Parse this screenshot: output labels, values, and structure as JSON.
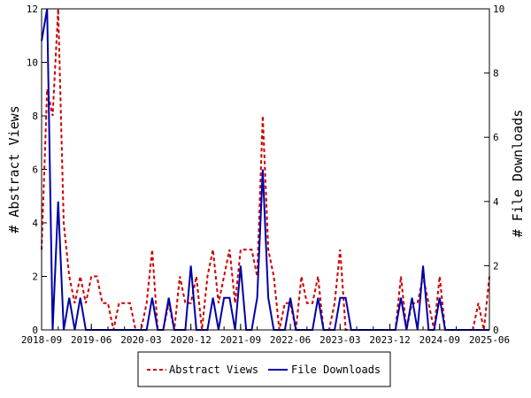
{
  "chart_data": {
    "type": "line",
    "title": "",
    "xlabel": "",
    "ylabel_left": "# Abstract Views",
    "ylabel_right": "# File Downloads",
    "ylim_left": [
      0,
      12
    ],
    "ylim_right": [
      0,
      10
    ],
    "yticks_left": [
      "0",
      "2",
      "4",
      "6",
      "8",
      "10",
      "12"
    ],
    "yticks_right": [
      "0",
      "2",
      "4",
      "6",
      "8",
      "10"
    ],
    "xlim": [
      "2018-09",
      "2025-06"
    ],
    "xtick_labels": [
      "2018-09",
      "2019-06",
      "2020-03",
      "2020-12",
      "2021-09",
      "2022-06",
      "2023-03",
      "2023-12",
      "2024-09",
      "2025-06"
    ],
    "grid": false,
    "legend_position": "bottom-center",
    "colors": {
      "abstract_views": "#cc0000",
      "file_downloads": "#0000aa"
    },
    "series": [
      {
        "name": "Abstract Views",
        "axis": "left",
        "style": "dashed",
        "points": [
          [
            "2018-09-01",
            3
          ],
          [
            "2018-10-01",
            9
          ],
          [
            "2018-11-01",
            8
          ],
          [
            "2018-12-01",
            12
          ],
          [
            "2019-01-01",
            4
          ],
          [
            "2019-02-01",
            2
          ],
          [
            "2019-03-01",
            1
          ],
          [
            "2019-04-01",
            2
          ],
          [
            "2019-05-01",
            1
          ],
          [
            "2019-06-01",
            2
          ],
          [
            "2019-07-01",
            2
          ],
          [
            "2019-08-01",
            1
          ],
          [
            "2019-09-01",
            1
          ],
          [
            "2019-10-01",
            0
          ],
          [
            "2019-11-01",
            1
          ],
          [
            "2019-12-01",
            1
          ],
          [
            "2020-01-01",
            1
          ],
          [
            "2020-02-01",
            0
          ],
          [
            "2020-03-01",
            0
          ],
          [
            "2020-04-01",
            1
          ],
          [
            "2020-05-01",
            3
          ],
          [
            "2020-06-01",
            0
          ],
          [
            "2020-07-01",
            0
          ],
          [
            "2020-08-01",
            1
          ],
          [
            "2020-09-01",
            0
          ],
          [
            "2020-10-01",
            2
          ],
          [
            "2020-11-01",
            1
          ],
          [
            "2020-12-01",
            1
          ],
          [
            "2021-01-01",
            2
          ],
          [
            "2021-02-01",
            0
          ],
          [
            "2021-03-01",
            2
          ],
          [
            "2021-04-01",
            3
          ],
          [
            "2021-05-01",
            1
          ],
          [
            "2021-06-01",
            2
          ],
          [
            "2021-07-01",
            3
          ],
          [
            "2021-08-01",
            1
          ],
          [
            "2021-09-01",
            3
          ],
          [
            "2021-10-01",
            3
          ],
          [
            "2021-11-01",
            3
          ],
          [
            "2021-12-01",
            2
          ],
          [
            "2022-01-01",
            8
          ],
          [
            "2022-02-01",
            3
          ],
          [
            "2022-03-01",
            2
          ],
          [
            "2022-04-01",
            0
          ],
          [
            "2022-05-01",
            1
          ],
          [
            "2022-06-01",
            1
          ],
          [
            "2022-07-01",
            0
          ],
          [
            "2022-08-01",
            2
          ],
          [
            "2022-09-01",
            1
          ],
          [
            "2022-10-01",
            1
          ],
          [
            "2022-11-01",
            2
          ],
          [
            "2022-12-01",
            0
          ],
          [
            "2023-01-01",
            0
          ],
          [
            "2023-02-01",
            1
          ],
          [
            "2023-03-01",
            3
          ],
          [
            "2023-04-01",
            0
          ],
          [
            "2023-05-01",
            0
          ],
          [
            "2023-06-01",
            0
          ],
          [
            "2023-07-01",
            0
          ],
          [
            "2023-08-01",
            0
          ],
          [
            "2023-09-01",
            0
          ],
          [
            "2023-10-01",
            0
          ],
          [
            "2023-11-01",
            0
          ],
          [
            "2023-12-01",
            0
          ],
          [
            "2024-01-01",
            0
          ],
          [
            "2024-02-01",
            2
          ],
          [
            "2024-03-01",
            0
          ],
          [
            "2024-04-01",
            1
          ],
          [
            "2024-05-01",
            1
          ],
          [
            "2024-06-01",
            2
          ],
          [
            "2024-07-01",
            1
          ],
          [
            "2024-08-01",
            0
          ],
          [
            "2024-09-01",
            2
          ],
          [
            "2024-10-01",
            0
          ],
          [
            "2024-11-01",
            0
          ],
          [
            "2024-12-01",
            0
          ],
          [
            "2025-01-01",
            0
          ],
          [
            "2025-02-01",
            0
          ],
          [
            "2025-03-01",
            0
          ],
          [
            "2025-04-01",
            1
          ],
          [
            "2025-05-01",
            0
          ],
          [
            "2025-06-01",
            2
          ]
        ]
      },
      {
        "name": "File Downloads",
        "axis": "right",
        "style": "solid",
        "points": [
          [
            "2018-09-01",
            9
          ],
          [
            "2018-10-01",
            10
          ],
          [
            "2018-11-01",
            0
          ],
          [
            "2018-12-01",
            4
          ],
          [
            "2019-01-01",
            0
          ],
          [
            "2019-02-01",
            1
          ],
          [
            "2019-03-01",
            0
          ],
          [
            "2019-04-01",
            1
          ],
          [
            "2019-05-01",
            0
          ],
          [
            "2019-06-01",
            0
          ],
          [
            "2019-07-01",
            0
          ],
          [
            "2019-08-01",
            0
          ],
          [
            "2019-09-01",
            0
          ],
          [
            "2019-10-01",
            0
          ],
          [
            "2019-11-01",
            0
          ],
          [
            "2019-12-01",
            0
          ],
          [
            "2020-01-01",
            0
          ],
          [
            "2020-02-01",
            0
          ],
          [
            "2020-03-01",
            0
          ],
          [
            "2020-04-01",
            0
          ],
          [
            "2020-05-01",
            1
          ],
          [
            "2020-06-01",
            0
          ],
          [
            "2020-07-01",
            0
          ],
          [
            "2020-08-01",
            1
          ],
          [
            "2020-09-01",
            0
          ],
          [
            "2020-10-01",
            0
          ],
          [
            "2020-11-01",
            0
          ],
          [
            "2020-12-01",
            2
          ],
          [
            "2021-01-01",
            0
          ],
          [
            "2021-02-01",
            0
          ],
          [
            "2021-03-01",
            0
          ],
          [
            "2021-04-01",
            1
          ],
          [
            "2021-05-01",
            0
          ],
          [
            "2021-06-01",
            1
          ],
          [
            "2021-07-01",
            1
          ],
          [
            "2021-08-01",
            0
          ],
          [
            "2021-09-01",
            2
          ],
          [
            "2021-10-01",
            0
          ],
          [
            "2021-11-01",
            0
          ],
          [
            "2021-12-01",
            1
          ],
          [
            "2022-01-01",
            5
          ],
          [
            "2022-02-01",
            1
          ],
          [
            "2022-03-01",
            0
          ],
          [
            "2022-04-01",
            0
          ],
          [
            "2022-05-01",
            0
          ],
          [
            "2022-06-01",
            1
          ],
          [
            "2022-07-01",
            0
          ],
          [
            "2022-08-01",
            0
          ],
          [
            "2022-09-01",
            0
          ],
          [
            "2022-10-01",
            0
          ],
          [
            "2022-11-01",
            1
          ],
          [
            "2022-12-01",
            0
          ],
          [
            "2023-01-01",
            0
          ],
          [
            "2023-02-01",
            0
          ],
          [
            "2023-03-01",
            1
          ],
          [
            "2023-04-01",
            1
          ],
          [
            "2023-05-01",
            0
          ],
          [
            "2023-06-01",
            0
          ],
          [
            "2023-07-01",
            0
          ],
          [
            "2023-08-01",
            0
          ],
          [
            "2023-09-01",
            0
          ],
          [
            "2023-10-01",
            0
          ],
          [
            "2023-11-01",
            0
          ],
          [
            "2023-12-01",
            0
          ],
          [
            "2024-01-01",
            0
          ],
          [
            "2024-02-01",
            1
          ],
          [
            "2024-03-01",
            0
          ],
          [
            "2024-04-01",
            1
          ],
          [
            "2024-05-01",
            0
          ],
          [
            "2024-06-01",
            2
          ],
          [
            "2024-07-01",
            0
          ],
          [
            "2024-08-01",
            0
          ],
          [
            "2024-09-01",
            1
          ],
          [
            "2024-10-01",
            0
          ],
          [
            "2024-11-01",
            0
          ],
          [
            "2024-12-01",
            0
          ],
          [
            "2025-01-01",
            0
          ],
          [
            "2025-02-01",
            0
          ],
          [
            "2025-03-01",
            0
          ],
          [
            "2025-04-01",
            0
          ],
          [
            "2025-05-01",
            0
          ],
          [
            "2025-06-01",
            0
          ]
        ]
      }
    ]
  }
}
